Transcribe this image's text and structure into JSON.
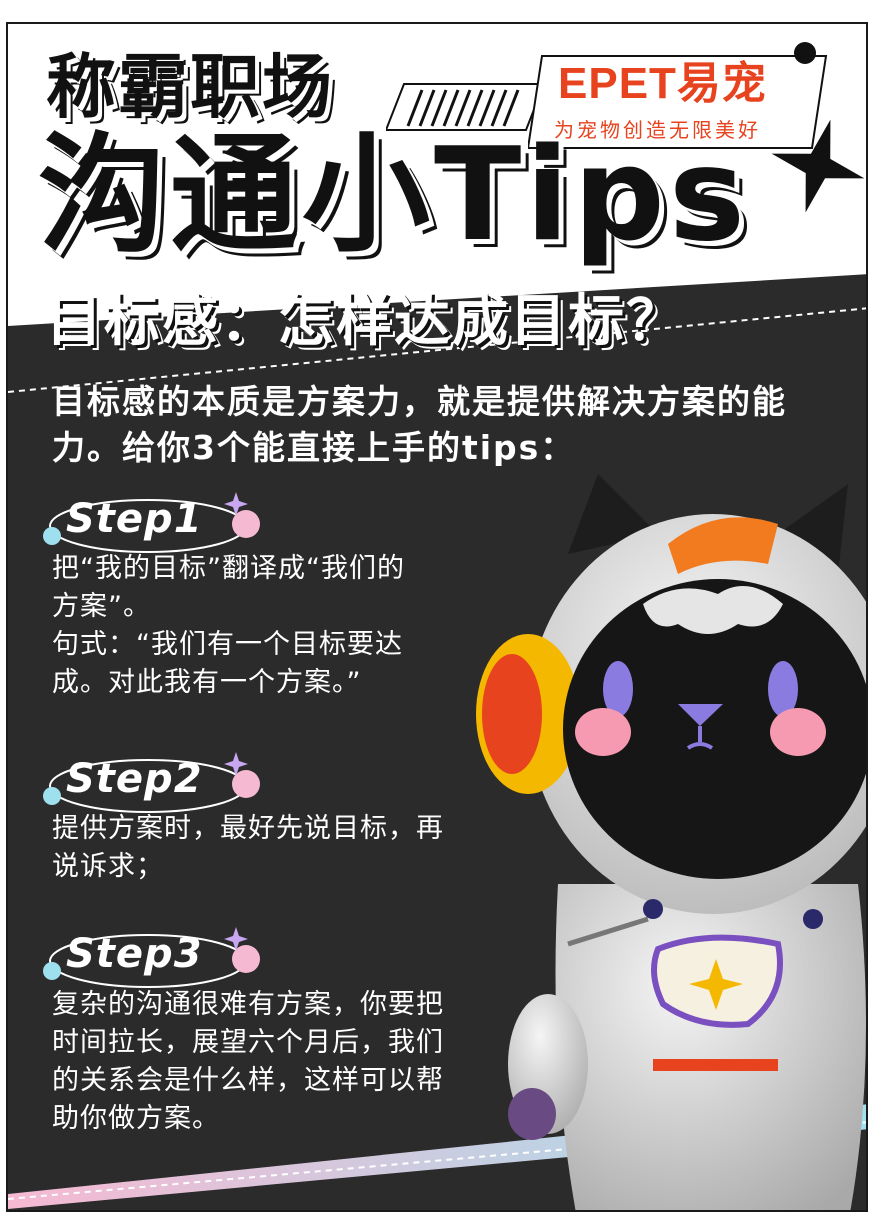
{
  "header": {
    "title_line1": "称霸职场",
    "title_line2": "沟通小Tips",
    "brand": "EPET易宠",
    "slogan": "为宠物创造无限美好"
  },
  "subtitle": "目标感：怎样达成目标？",
  "intro": "目标感的本质是方案力，就是提供解决方案的能力。给你3个能直接上手的tips：",
  "steps": [
    {
      "label": "Step1",
      "text_lines": [
        "把“我的目标”翻译成“我们的",
        "方案”。",
        "句式：“我们有一个目标要达",
        "成。对此我有一个方案。”"
      ]
    },
    {
      "label": "Step2",
      "text_lines": [
        "提供方案时，最好先说目标，再",
        "说诉求；"
      ]
    },
    {
      "label": "Step3",
      "text_lines": [
        "复杂的沟通很难有方案，你要把",
        "时间拉长，展望六个月后，我们",
        "的关系会是什么样，这样可以帮",
        "助你做方案。"
      ]
    }
  ],
  "colors": {
    "dark": "#2b2b2b",
    "brand": "#e8431f",
    "accent_pink": "#f59ac0",
    "accent_blue": "#8fd8ea"
  },
  "mascot": "astronaut-cat-mascot"
}
